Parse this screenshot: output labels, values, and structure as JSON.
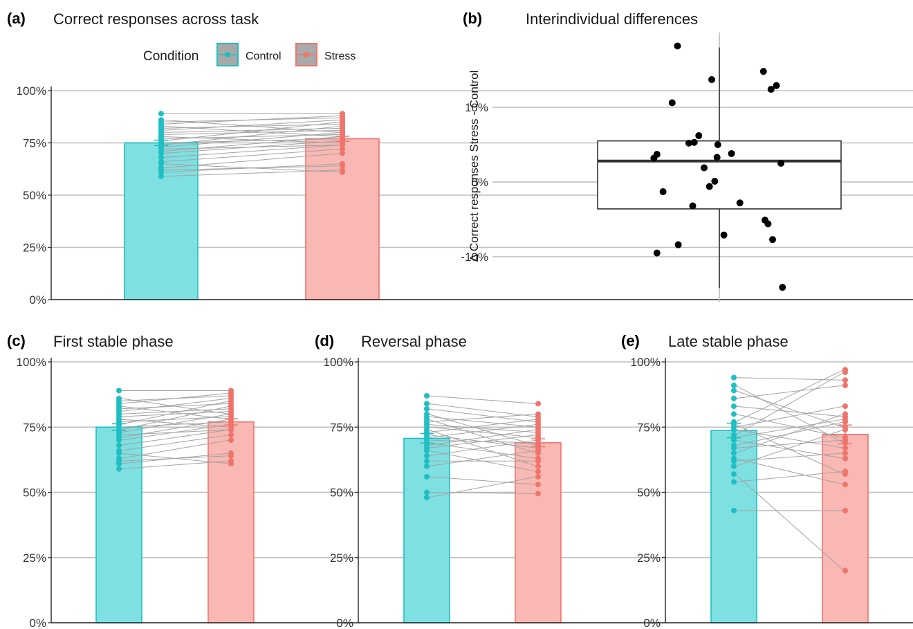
{
  "legend": {
    "title": "Condition",
    "items": [
      {
        "label": "Control",
        "color": "#1fbfc3",
        "fill": "#7fe0e2"
      },
      {
        "label": "Stress",
        "color": "#f0746b",
        "fill": "#f9b8b3"
      }
    ]
  },
  "chart_data": [
    {
      "id": "a",
      "tag": "(a)",
      "title": "Correct responses across task",
      "type": "bar",
      "categories": [
        "Control",
        "Stress"
      ],
      "means": [
        75,
        77
      ],
      "se": [
        1.3,
        1.2
      ],
      "ylim": [
        0,
        100
      ],
      "yticks": [
        "0%",
        "25%",
        "50%",
        "75%",
        "100%"
      ],
      "points": [
        [
          59,
          62
        ],
        [
          61,
          65
        ],
        [
          62,
          64
        ],
        [
          63,
          70
        ],
        [
          65,
          61
        ],
        [
          66,
          72
        ],
        [
          68,
          74
        ],
        [
          70,
          76
        ],
        [
          71,
          78
        ],
        [
          72,
          74
        ],
        [
          73,
          80
        ],
        [
          74,
          83
        ],
        [
          75,
          77
        ],
        [
          76,
          85
        ],
        [
          77,
          79
        ],
        [
          78,
          75
        ],
        [
          79,
          81
        ],
        [
          80,
          82
        ],
        [
          81,
          86
        ],
        [
          82,
          84
        ],
        [
          83,
          78
        ],
        [
          84,
          88
        ],
        [
          85,
          87
        ],
        [
          86,
          80
        ],
        [
          89,
          89
        ]
      ]
    },
    {
      "id": "b",
      "tag": "(b)",
      "title": "Interindividual differences",
      "type": "boxplot",
      "ylabel": "Δ Correct responses Stress - Control",
      "ylim": [
        -16,
        20
      ],
      "yticks": [
        {
          "v": 10,
          "label": "10%"
        },
        {
          "v": 0,
          "label": "0%"
        },
        {
          "v": -10,
          "label": "-10%"
        }
      ],
      "box": {
        "q1": -3.6,
        "median": 2.8,
        "q3": 5.5,
        "lower": -14.2,
        "upper": 18.0
      },
      "points": [
        {
          "x": -0.55,
          "y": 18.2
        },
        {
          "x": -0.1,
          "y": 13.7
        },
        {
          "x": 0.58,
          "y": 14.8
        },
        {
          "x": 0.68,
          "y": 12.4
        },
        {
          "x": 0.75,
          "y": 12.9
        },
        {
          "x": -0.62,
          "y": 10.6
        },
        {
          "x": -0.27,
          "y": 6.2
        },
        {
          "x": -0.4,
          "y": 5.2
        },
        {
          "x": -0.33,
          "y": 5.3
        },
        {
          "x": -0.02,
          "y": 5.0
        },
        {
          "x": -0.82,
          "y": 3.7
        },
        {
          "x": -0.86,
          "y": 3.2
        },
        {
          "x": 0.16,
          "y": 3.8
        },
        {
          "x": -0.03,
          "y": 3.3
        },
        {
          "x": 0.81,
          "y": 2.5
        },
        {
          "x": -0.2,
          "y": 1.9
        },
        {
          "x": -0.06,
          "y": 0.1
        },
        {
          "x": -0.13,
          "y": -0.6
        },
        {
          "x": -0.74,
          "y": -1.3
        },
        {
          "x": 0.27,
          "y": -2.8
        },
        {
          "x": -0.35,
          "y": -3.2
        },
        {
          "x": 0.64,
          "y": -5.6
        },
        {
          "x": 0.6,
          "y": -5.1
        },
        {
          "x": 0.06,
          "y": -7.1
        },
        {
          "x": 0.7,
          "y": -7.7
        },
        {
          "x": -0.54,
          "y": -8.4
        },
        {
          "x": -0.82,
          "y": -9.5
        },
        {
          "x": 0.83,
          "y": -14.1
        }
      ]
    },
    {
      "id": "c",
      "tag": "(c)",
      "title": "First stable phase",
      "type": "bar",
      "categories": [
        "Control",
        "Stress"
      ],
      "means": [
        75,
        77
      ],
      "se": [
        1.3,
        1.2
      ],
      "ylim": [
        0,
        100
      ],
      "yticks": [
        "0%",
        "25%",
        "50%",
        "75%",
        "100%"
      ],
      "points": [
        [
          59,
          62
        ],
        [
          61,
          65
        ],
        [
          62,
          64
        ],
        [
          63,
          70
        ],
        [
          65,
          61
        ],
        [
          66,
          72
        ],
        [
          68,
          74
        ],
        [
          70,
          76
        ],
        [
          71,
          78
        ],
        [
          72,
          74
        ],
        [
          73,
          80
        ],
        [
          74,
          83
        ],
        [
          75,
          77
        ],
        [
          76,
          85
        ],
        [
          77,
          79
        ],
        [
          78,
          75
        ],
        [
          79,
          81
        ],
        [
          80,
          82
        ],
        [
          81,
          86
        ],
        [
          82,
          84
        ],
        [
          83,
          78
        ],
        [
          84,
          88
        ],
        [
          85,
          87
        ],
        [
          86,
          80
        ],
        [
          89,
          89
        ]
      ]
    },
    {
      "id": "d",
      "tag": "(d)",
      "title": "Reversal phase",
      "type": "bar",
      "categories": [
        "Control",
        "Stress"
      ],
      "means": [
        70.7,
        69
      ],
      "se": [
        1.8,
        1.5
      ],
      "ylim": [
        0,
        100
      ],
      "yticks": [
        "0%",
        "25%",
        "50%",
        "75%",
        "100%"
      ],
      "points": [
        [
          48,
          56
        ],
        [
          50,
          49.5
        ],
        [
          56,
          53
        ],
        [
          60,
          66
        ],
        [
          62,
          62
        ],
        [
          64,
          70
        ],
        [
          66,
          58
        ],
        [
          67,
          72
        ],
        [
          68,
          74
        ],
        [
          69,
          63
        ],
        [
          70,
          69
        ],
        [
          71,
          76
        ],
        [
          72,
          67
        ],
        [
          73,
          78
        ],
        [
          74,
          60
        ],
        [
          75,
          71
        ],
        [
          76,
          73
        ],
        [
          77,
          80
        ],
        [
          78,
          65
        ],
        [
          79,
          75
        ],
        [
          80,
          68
        ],
        [
          82,
          77
        ],
        [
          84,
          79
        ],
        [
          87,
          84
        ]
      ]
    },
    {
      "id": "e",
      "tag": "(e)",
      "title": "Late stable phase",
      "type": "bar",
      "categories": [
        "Control",
        "Stress"
      ],
      "means": [
        73.7,
        72.2
      ],
      "se": [
        2.8,
        3.6
      ],
      "ylim": [
        0,
        100
      ],
      "yticks": [
        "0%",
        "25%",
        "50%",
        "75%",
        "100%"
      ],
      "points": [
        [
          43,
          43
        ],
        [
          54,
          58
        ],
        [
          57,
          20
        ],
        [
          60,
          74
        ],
        [
          62,
          65
        ],
        [
          63,
          53
        ],
        [
          65,
          80
        ],
        [
          67,
          70
        ],
        [
          68,
          77
        ],
        [
          70,
          63
        ],
        [
          71,
          78
        ],
        [
          72,
          96
        ],
        [
          74,
          67
        ],
        [
          75,
          83
        ],
        [
          76,
          57
        ],
        [
          77,
          97
        ],
        [
          80,
          71
        ],
        [
          83,
          79
        ],
        [
          86,
          91
        ],
        [
          89,
          75
        ],
        [
          91,
          69
        ],
        [
          94,
          93
        ]
      ]
    }
  ]
}
